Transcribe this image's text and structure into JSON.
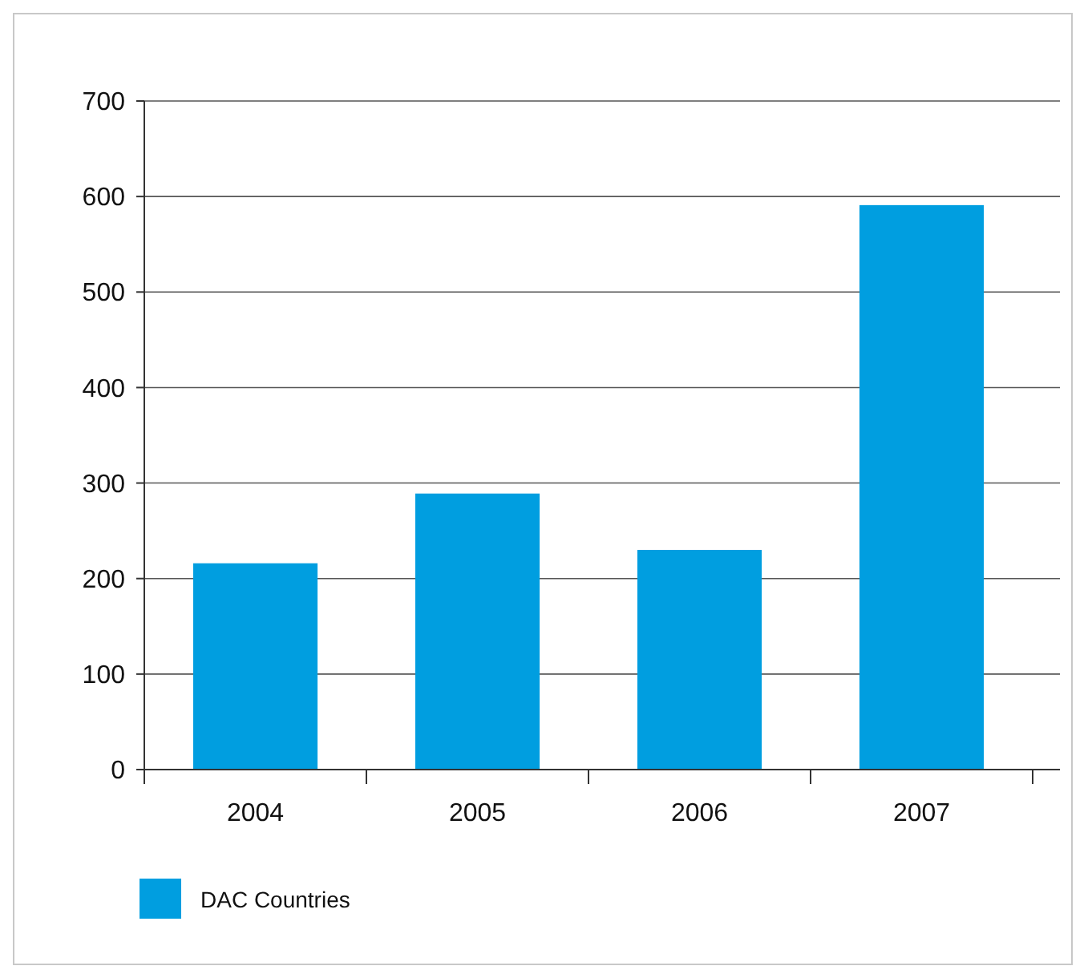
{
  "chart_data": {
    "type": "bar",
    "categories": [
      "2004",
      "2005",
      "2006",
      "2007"
    ],
    "series": [
      {
        "name": "DAC Countries",
        "color": "#009ee0",
        "values": [
          216,
          289,
          230,
          591
        ]
      }
    ],
    "ylim": [
      0,
      700
    ],
    "yticks": [
      0,
      100,
      200,
      300,
      400,
      500,
      600,
      700
    ],
    "grid": "y",
    "legend": "bottom left"
  }
}
